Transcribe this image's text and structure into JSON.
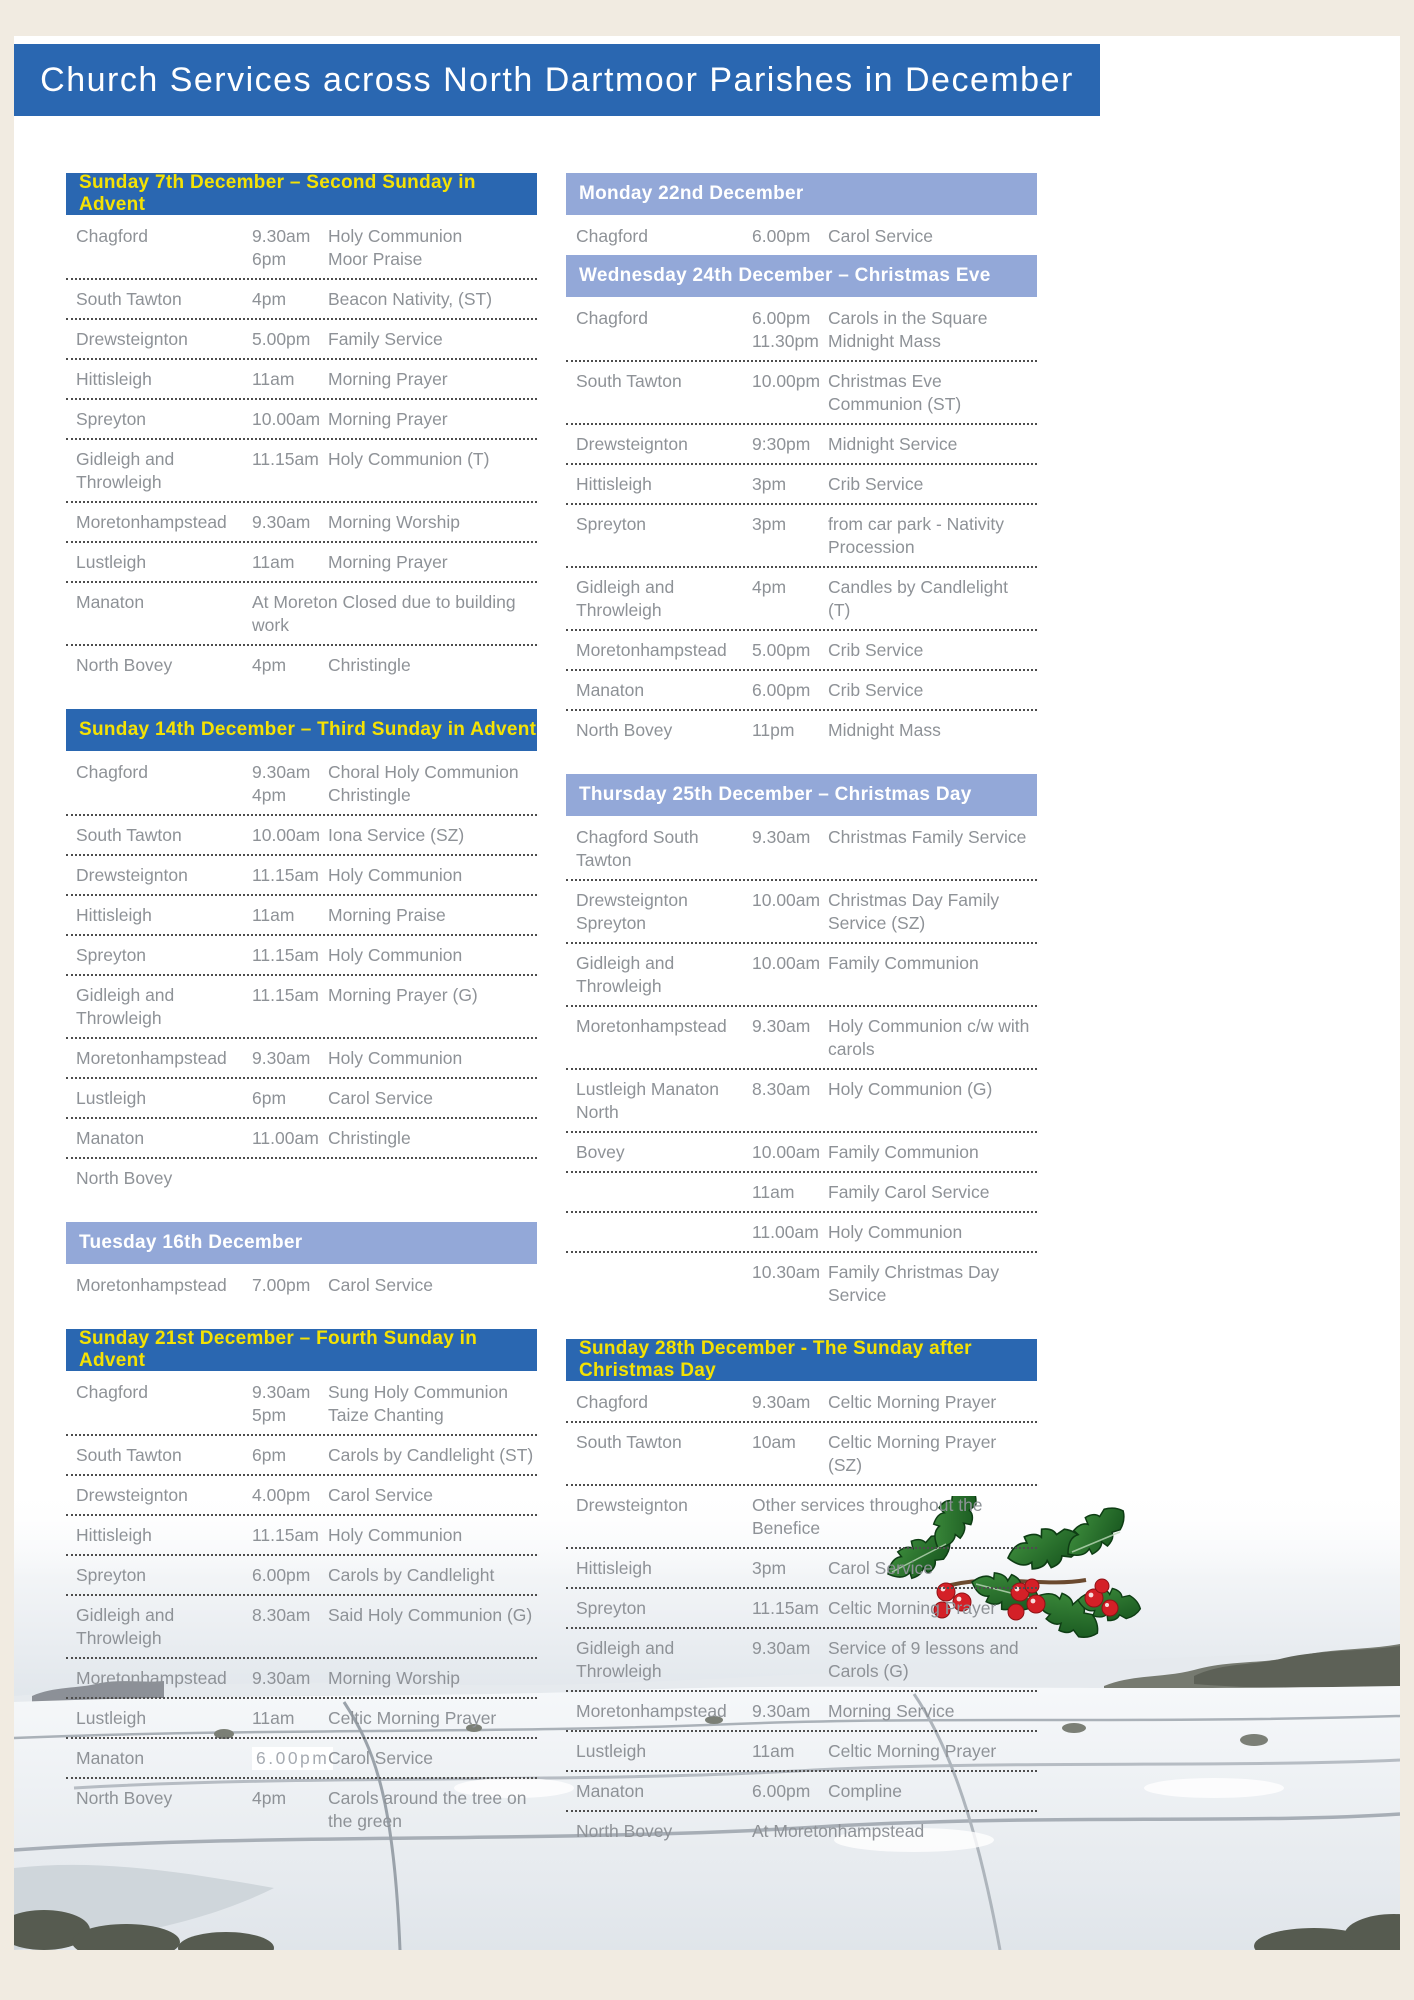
{
  "page": {
    "title": "Church Services across North Dartmoor Parishes in December"
  },
  "colors": {
    "cream_background": "#f1ebe1",
    "header_dark_blue": "#2a67b1",
    "header_dark_text_yellow": "#f5e203",
    "header_light_blue": "#93a8d8",
    "header_light_text": "#ffffff",
    "body_text_grey": "#8e9297",
    "holly_berry_red": "#d42027",
    "holly_leaf_green": "#1f6b2a"
  },
  "columns": {
    "left": [
      {
        "title": "Sunday 7th December – Second Sunday in Advent",
        "style": "dark",
        "rows": [
          {
            "parish": "Chagford",
            "entries": [
              [
                "9.30am",
                "Holy Communion"
              ],
              [
                "6pm",
                "Moor Praise"
              ]
            ]
          },
          {
            "parish": "South Tawton",
            "entries": [
              [
                "4pm",
                "Beacon Nativity, (ST)"
              ]
            ]
          },
          {
            "parish": "Drewsteignton",
            "entries": [
              [
                "5.00pm",
                "Family Service"
              ]
            ]
          },
          {
            "parish": "Hittisleigh",
            "entries": [
              [
                "11am",
                "Morning Prayer"
              ]
            ]
          },
          {
            "parish": "Spreyton",
            "entries": [
              [
                "10.00am",
                "Morning Prayer"
              ]
            ]
          },
          {
            "parish": "Gidleigh and Throwleigh",
            "entries": [
              [
                "11.15am",
                "Holy Communion (T)"
              ]
            ]
          },
          {
            "parish": "Moretonhampstead",
            "entries": [
              [
                "9.30am",
                "Morning Worship"
              ]
            ]
          },
          {
            "parish": "Lustleigh",
            "entries": [
              [
                "11am",
                "Morning Prayer"
              ]
            ]
          },
          {
            "parish": "Manaton",
            "span": "At Moreton Closed due to building work"
          },
          {
            "parish": "North Bovey",
            "entries": [
              [
                "4pm",
                "Christingle"
              ]
            ]
          }
        ]
      },
      {
        "title": "Sunday 14th December – Third Sunday in Advent",
        "style": "dark",
        "rows": [
          {
            "parish": "Chagford",
            "entries": [
              [
                "9.30am",
                "Choral Holy Communion"
              ],
              [
                "4pm",
                "Christingle"
              ]
            ]
          },
          {
            "parish": "South Tawton",
            "entries": [
              [
                "10.00am",
                "Iona Service (SZ)"
              ]
            ]
          },
          {
            "parish": "Drewsteignton",
            "entries": [
              [
                "11.15am",
                "Holy Communion"
              ]
            ]
          },
          {
            "parish": "Hittisleigh",
            "entries": [
              [
                "11am",
                "Morning Praise"
              ]
            ]
          },
          {
            "parish": "Spreyton",
            "entries": [
              [
                "11.15am",
                "Holy Communion"
              ]
            ]
          },
          {
            "parish": "Gidleigh and Throwleigh",
            "entries": [
              [
                "11.15am",
                "Morning Prayer (G)"
              ]
            ]
          },
          {
            "parish": "Moretonhampstead",
            "entries": [
              [
                "9.30am",
                "Holy Communion"
              ]
            ]
          },
          {
            "parish": "Lustleigh",
            "entries": [
              [
                "6pm",
                "Carol Service"
              ]
            ]
          },
          {
            "parish": "Manaton",
            "entries": [
              [
                "11.00am",
                "Christingle"
              ]
            ]
          },
          {
            "parish": "North Bovey",
            "entries": []
          }
        ]
      },
      {
        "title": "Tuesday 16th December",
        "style": "light",
        "rows": [
          {
            "parish": "Moretonhampstead",
            "entries": [
              [
                "7.00pm",
                "Carol Service"
              ]
            ]
          }
        ]
      },
      {
        "title": "Sunday 21st December – Fourth Sunday in Advent",
        "style": "dark",
        "rows": [
          {
            "parish": "Chagford",
            "entries": [
              [
                "9.30am",
                "Sung Holy Communion"
              ],
              [
                "5pm",
                "Taize Chanting"
              ]
            ]
          },
          {
            "parish": "South Tawton",
            "entries": [
              [
                "6pm",
                "Carols by Candlelight (ST)"
              ]
            ]
          },
          {
            "parish": "Drewsteignton",
            "entries": [
              [
                "4.00pm",
                "Carol Service"
              ]
            ]
          },
          {
            "parish": "Hittisleigh",
            "entries": [
              [
                "11.15am",
                "Holy Communion"
              ]
            ]
          },
          {
            "parish": "Spreyton",
            "entries": [
              [
                "6.00pm",
                "Carols by Candlelight"
              ]
            ]
          },
          {
            "parish": "Gidleigh and Throwleigh",
            "entries": [
              [
                "8.30am",
                "Said Holy Communion (G)"
              ]
            ]
          },
          {
            "parish": "Moretonhampstead",
            "entries": [
              [
                "9.30am",
                "Morning Worship"
              ]
            ]
          },
          {
            "parish": "Lustleigh",
            "entries": [
              [
                "11am",
                "Celtic Morning Prayer"
              ]
            ]
          },
          {
            "parish": "Manaton",
            "entries": [
              [
                "6.00pm",
                "Carol Service"
              ]
            ],
            "time_patched": true
          },
          {
            "parish": "North Bovey",
            "entries": [
              [
                "4pm",
                "Carols around the tree on the green"
              ]
            ]
          }
        ]
      }
    ],
    "right": [
      {
        "title": "Monday 22nd December",
        "style": "light",
        "tight": true,
        "rows": [
          {
            "parish": "Chagford",
            "entries": [
              [
                "6.00pm",
                "Carol Service"
              ]
            ]
          }
        ]
      },
      {
        "title": "Wednesday 24th December – Christmas Eve",
        "style": "light",
        "rows": [
          {
            "parish": "Chagford",
            "entries": [
              [
                "6.00pm",
                "Carols in the Square"
              ],
              [
                "11.30pm",
                "Midnight Mass"
              ]
            ]
          },
          {
            "parish": "South Tawton",
            "entries": [
              [
                "10.00pm",
                "Christmas Eve Communion (ST)"
              ]
            ]
          },
          {
            "parish": "Drewsteignton",
            "entries": [
              [
                "9:30pm",
                "Midnight Service"
              ]
            ]
          },
          {
            "parish": "Hittisleigh",
            "entries": [
              [
                "3pm",
                "Crib Service"
              ]
            ]
          },
          {
            "parish": "Spreyton",
            "entries": [
              [
                "3pm",
                "from car park - Nativity Procession"
              ]
            ]
          },
          {
            "parish": "Gidleigh and Throwleigh",
            "entries": [
              [
                "4pm",
                "Candles by Candlelight (T)"
              ]
            ]
          },
          {
            "parish": "Moretonhampstead",
            "entries": [
              [
                "5.00pm",
                "Crib Service"
              ]
            ]
          },
          {
            "parish": "Manaton",
            "entries": [
              [
                "6.00pm",
                "Crib Service"
              ]
            ]
          },
          {
            "parish": "North Bovey",
            "entries": [
              [
                "11pm",
                "Midnight Mass"
              ]
            ]
          }
        ]
      },
      {
        "title": "Thursday 25th December – Christmas Day",
        "style": "light",
        "rows": [
          {
            "parish": "Chagford South Tawton",
            "entries": [
              [
                "9.30am",
                "Christmas Family Service"
              ]
            ]
          },
          {
            "parish": "Drewsteignton Spreyton",
            "entries": [
              [
                "10.00am",
                "Christmas Day Family Service (SZ)"
              ]
            ]
          },
          {
            "parish": "Gidleigh and Throwleigh",
            "entries": [
              [
                "10.00am",
                "Family Communion"
              ]
            ]
          },
          {
            "parish": "Moretonhampstead",
            "entries": [
              [
                "9.30am",
                "Holy Communion c/w with carols"
              ]
            ]
          },
          {
            "parish": "Lustleigh Manaton North",
            "entries": [
              [
                "8.30am",
                "Holy Communion (G)"
              ]
            ]
          },
          {
            "parish": "Bovey",
            "entries": [
              [
                "10.00am",
                "Family Communion"
              ]
            ]
          },
          {
            "parish": "",
            "entries": [
              [
                "11am",
                "Family Carol Service"
              ]
            ]
          },
          {
            "parish": "",
            "entries": [
              [
                "11.00am",
                "Holy Communion"
              ]
            ]
          },
          {
            "parish": "",
            "entries": [
              [
                "10.30am",
                "Family Christmas Day Service"
              ]
            ]
          }
        ]
      },
      {
        "title": "Sunday 28th December - The Sunday after Christmas Day",
        "style": "dark",
        "rows": [
          {
            "parish": "Chagford",
            "entries": [
              [
                "9.30am",
                "Celtic Morning Prayer"
              ]
            ]
          },
          {
            "parish": "South Tawton",
            "entries": [
              [
                "10am",
                "Celtic Morning Prayer (SZ)"
              ]
            ]
          },
          {
            "parish": "Drewsteignton",
            "span": "Other services throughout the Benefice"
          },
          {
            "parish": "Hittisleigh",
            "entries": [
              [
                "3pm",
                "Carol Service"
              ]
            ]
          },
          {
            "parish": "Spreyton",
            "entries": [
              [
                "11.15am",
                "Celtic Morning Prayer"
              ]
            ]
          },
          {
            "parish": "Gidleigh and Throwleigh",
            "entries": [
              [
                "9.30am",
                "Service of 9 lessons and Carols (G)"
              ]
            ]
          },
          {
            "parish": "Moretonhampstead",
            "entries": [
              [
                "9.30am",
                "Morning Service"
              ]
            ]
          },
          {
            "parish": "Lustleigh",
            "entries": [
              [
                "11am",
                "Celtic Morning Prayer"
              ]
            ]
          },
          {
            "parish": "Manaton",
            "entries": [
              [
                "6.00pm",
                "Compline"
              ]
            ]
          },
          {
            "parish": "North Bovey",
            "span": "At Moretonhampstead"
          }
        ]
      }
    ]
  },
  "footer": {
    "photo_description": "Snow-covered Dartmoor moorland landscape",
    "illustration_description": "Holly sprig with red berries"
  }
}
